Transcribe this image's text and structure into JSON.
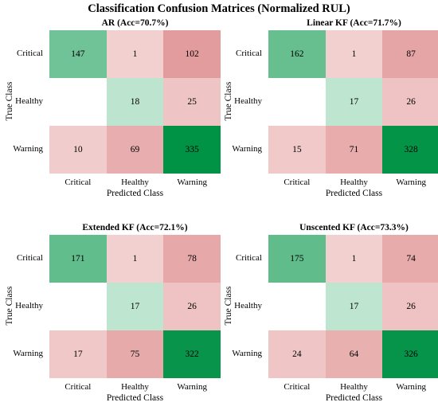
{
  "title": "Classification Confusion Matrices (Normalized RUL)",
  "chart_data": [
    {
      "type": "heatmap",
      "title": "AR (Acc=70.7%)",
      "xlabel": "Predicted Class",
      "ylabel": "True Class",
      "x_categories": [
        "Critical",
        "Healthy",
        "Warning"
      ],
      "y_categories": [
        "Critical",
        "Healthy",
        "Warning"
      ],
      "values": [
        [
          147,
          1,
          102
        ],
        [
          null,
          18,
          25
        ],
        [
          10,
          69,
          335
        ]
      ]
    },
    {
      "type": "heatmap",
      "title": "Linear KF (Acc=71.7%)",
      "xlabel": "Predicted Class",
      "ylabel": "True Class",
      "x_categories": [
        "Critical",
        "Healthy",
        "Warning"
      ],
      "y_categories": [
        "Critical",
        "Healthy",
        "Warning"
      ],
      "values": [
        [
          162,
          1,
          87
        ],
        [
          null,
          17,
          26
        ],
        [
          15,
          71,
          328
        ]
      ]
    },
    {
      "type": "heatmap",
      "title": "Extended KF (Acc=72.1%)",
      "xlabel": "Predicted Class",
      "ylabel": "True Class",
      "x_categories": [
        "Critical",
        "Healthy",
        "Warning"
      ],
      "y_categories": [
        "Critical",
        "Healthy",
        "Warning"
      ],
      "values": [
        [
          171,
          1,
          78
        ],
        [
          null,
          17,
          26
        ],
        [
          17,
          75,
          322
        ]
      ]
    },
    {
      "type": "heatmap",
      "title": "Unscented KF (Acc=73.3%)",
      "xlabel": "Predicted Class",
      "ylabel": "True Class",
      "x_categories": [
        "Critical",
        "Healthy",
        "Warning"
      ],
      "y_categories": [
        "Critical",
        "Healthy",
        "Warning"
      ],
      "values": [
        [
          175,
          1,
          74
        ],
        [
          null,
          17,
          26
        ],
        [
          24,
          64,
          326
        ]
      ]
    }
  ],
  "colors": {
    "diag_strong": "#009245",
    "diag_light": "#c8e9d6",
    "offdiag_strong": "#e39c9d",
    "offdiag_light": "#f3d1d1",
    "empty": "#ffffff"
  }
}
